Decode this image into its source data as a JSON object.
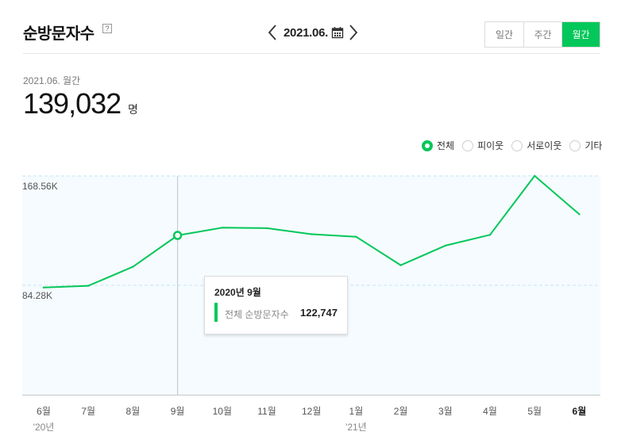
{
  "header": {
    "title": "순방문자수",
    "help_icon": "question-mark-icon",
    "date_label": "2021.06.",
    "periods": [
      "일간",
      "주간",
      "월간"
    ],
    "active_period": "월간"
  },
  "summary": {
    "date_label": "2021.06. 월간",
    "value": "139,032",
    "unit": "명"
  },
  "legend": [
    {
      "label": "전체",
      "selected": true
    },
    {
      "label": "피이웃",
      "selected": false
    },
    {
      "label": "서로이웃",
      "selected": false
    },
    {
      "label": "기타",
      "selected": false
    }
  ],
  "colors": {
    "accent": "#03c75a",
    "plot_bg": "#f5fbfe",
    "grid": "#d8ecf5"
  },
  "chart_data": {
    "type": "line",
    "categories": [
      "6월",
      "7월",
      "8월",
      "9월",
      "10월",
      "11월",
      "12월",
      "1월",
      "2월",
      "3월",
      "4월",
      "5월",
      "6월"
    ],
    "year_labels": [
      {
        "index": 0,
        "label": "'20년"
      },
      {
        "index": 7,
        "label": "'21년"
      }
    ],
    "bold_category_index": 12,
    "series": [
      {
        "name": "전체 순방문자수",
        "values": [
          82600,
          83900,
          98600,
          122747,
          128700,
          128300,
          123700,
          121700,
          99800,
          114900,
          123200,
          168600,
          139032
        ]
      }
    ],
    "y_ticks": [
      {
        "value": 84280,
        "label": "84.28K"
      },
      {
        "value": 168560,
        "label": "168.56K"
      }
    ],
    "ylim": [
      0,
      168560
    ],
    "grid": true,
    "highlight_index": 3,
    "tooltip": {
      "title": "2020년 9월",
      "label": "전체 순방문자수",
      "value": "122,747"
    }
  }
}
